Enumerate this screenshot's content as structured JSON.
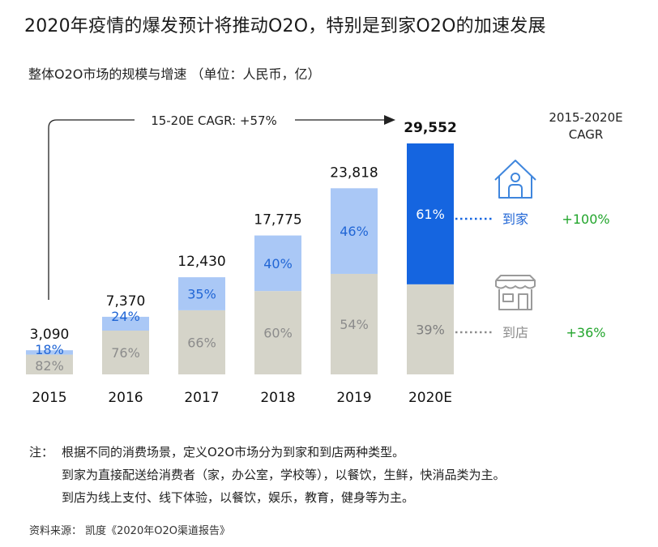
{
  "title": "2020年疫情的爆发预计将推动O2O，特别是到家O2O的加速发展",
  "subtitle": "整体O2O市场的规模与增速 （单位：人民币，亿）",
  "cagr_arrow_label": "15-20E CAGR: +57%",
  "cagr_header": [
    "2015-2020E",
    "CAGR"
  ],
  "legend": {
    "home": {
      "label": "到家",
      "cagr": "+100%",
      "icon": "house-person-icon"
    },
    "store": {
      "label": "到店",
      "cagr": "+36%",
      "icon": "storefront-icon"
    }
  },
  "colors": {
    "store_bar": "#d5d4c9",
    "home_light": "#aac8f6",
    "home_dark": "#1565e0",
    "home_text": "#2166d5",
    "store_text": "#8c8c8c",
    "growth_text": "#22a52c",
    "icon_blue": "#3f86dd",
    "icon_grey": "#9a9a9a"
  },
  "chart_data": {
    "type": "bar",
    "stacked": true,
    "title": "整体O2O市场的规模与增速 （单位：人民币，亿）",
    "categories": [
      "2015",
      "2016",
      "2017",
      "2018",
      "2019",
      "2020E"
    ],
    "totals": [
      3090,
      7370,
      12430,
      17775,
      23818,
      29552
    ],
    "total_labels": [
      "3,090",
      "7,370",
      "12,430",
      "17,775",
      "23,818",
      "29,552"
    ],
    "series": [
      {
        "name": "到店",
        "share_pct": [
          82,
          76,
          66,
          60,
          54,
          39
        ],
        "labels": [
          "82%",
          "76%",
          "66%",
          "60%",
          "54%",
          "39%"
        ]
      },
      {
        "name": "到家",
        "share_pct": [
          18,
          24,
          35,
          40,
          46,
          61
        ],
        "labels": [
          "18%",
          "24%",
          "35%",
          "40%",
          "46%",
          "61%"
        ]
      }
    ],
    "cagr": {
      "overall": "+57%",
      "到家": "+100%",
      "到店": "+36%"
    }
  },
  "notes": {
    "label": "注：",
    "lines": [
      "根据不同的消费场景，定义O2O市场分为到家和到店两种类型。",
      "到家为直接配送给消费者（家，办公室，学校等），以餐饮，生鲜，快消品类为主。",
      "到店为线上支付、线下体验，以餐饮，娱乐，教育，健身等为主。"
    ]
  },
  "source": "资料来源： 凯度《2020年O2O渠道报告》"
}
